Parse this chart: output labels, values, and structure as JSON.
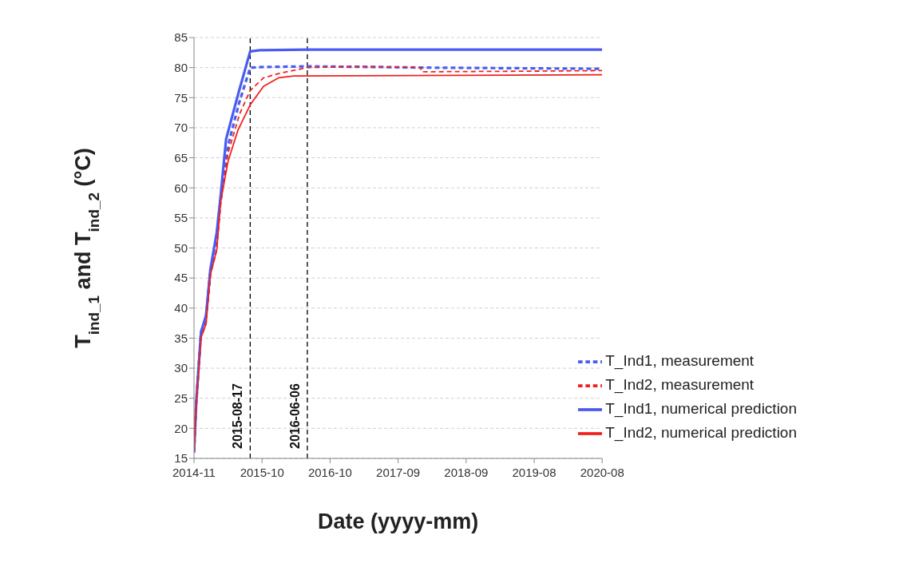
{
  "chart_data": {
    "type": "line",
    "xlabel": "Date (yyyy-mm)",
    "ylabel": "T$_{ind_1}$ and T$_{ind_2}$ (°C)",
    "xlim": [
      "2014-11-01",
      "2020-08-01"
    ],
    "xticks": [
      {
        "value": "2014-11-01",
        "label": "2014-11"
      },
      {
        "value": "2015-10-17",
        "label": "2015-10"
      },
      {
        "value": "2016-10-01",
        "label": "2016-10"
      },
      {
        "value": "2017-09-16",
        "label": "2017-09"
      },
      {
        "value": "2018-09-01",
        "label": "2018-09"
      },
      {
        "value": "2019-08-17",
        "label": "2019-08"
      },
      {
        "value": "2020-08-01",
        "label": "2020-08"
      }
    ],
    "ylim": [
      15,
      85
    ],
    "yticks": [
      15,
      20,
      25,
      30,
      35,
      40,
      45,
      50,
      55,
      60,
      65,
      70,
      75,
      80,
      85
    ],
    "grid": "y",
    "legend": "bottom right",
    "marker": "none",
    "ref_lines": [
      {
        "axis": "x",
        "value": "2015-08-17",
        "label": "2015-08-17",
        "color": "#000000",
        "line_style": "dashed"
      },
      {
        "axis": "x",
        "value": "2016-06-06",
        "label": "2016-06-06",
        "color": "#000000",
        "line_style": "dashed"
      }
    ],
    "series": [
      {
        "name": "T_Ind1, measurement",
        "color": "#4a5cf0",
        "line_style": "dashed",
        "x": [
          "2014-11-01",
          "2014-11-13",
          "2014-12-07",
          "2015-01-02",
          "2015-01-24",
          "2015-02-26",
          "2015-03-18",
          "2015-04-25",
          "2015-06-20",
          "2015-08-17",
          "2015-10-25",
          "2016-06-03",
          "2017-06-01",
          "2018-01-10",
          "2020-08-01"
        ],
        "values": [
          16,
          24.5,
          36,
          38.5,
          46,
          52,
          58,
          67,
          74,
          80,
          80.1,
          80.2,
          80.1,
          80,
          79.8
        ]
      },
      {
        "name": "T_Ind2, measurement",
        "color": "#f02020",
        "line_style": "dashed",
        "x": [
          "2014-11-01",
          "2014-11-13",
          "2014-12-07",
          "2015-01-02",
          "2015-01-24",
          "2015-02-26",
          "2015-03-18",
          "2015-04-25",
          "2015-06-25",
          "2015-08-17",
          "2015-10-25",
          "2016-01-10",
          "2016-06-03",
          "2017-03-01",
          "2018-01-10",
          "2018-01-15",
          "2019-06-01",
          "2020-08-01"
        ],
        "values": [
          16,
          24.2,
          35.1,
          37.4,
          45.5,
          49.7,
          57.3,
          65.8,
          72.4,
          76.2,
          78.3,
          79,
          80,
          80.2,
          80,
          79.3,
          79.4,
          79.5
        ]
      },
      {
        "name": "T_Ind1, numerical prediction",
        "color": "#4a5cf0",
        "line_style": "solid",
        "x": [
          "2014-11-01",
          "2014-11-13",
          "2014-12-07",
          "2015-01-02",
          "2015-01-24",
          "2015-02-26",
          "2015-03-18",
          "2015-04-15",
          "2015-06-17",
          "2015-08-17",
          "2015-10-06",
          "2016-06-06",
          "2020-08-01"
        ],
        "values": [
          16,
          24.6,
          36,
          38.8,
          46.4,
          52.6,
          58.7,
          68.1,
          75.7,
          82.7,
          82.9,
          83,
          83
        ]
      },
      {
        "name": "T_Ind2, numerical prediction",
        "color": "#f02020",
        "line_style": "solid",
        "x": [
          "2014-11-01",
          "2014-11-13",
          "2014-12-07",
          "2015-01-02",
          "2015-01-24",
          "2015-02-26",
          "2015-03-18",
          "2015-04-25",
          "2015-06-15",
          "2015-08-17",
          "2015-10-25",
          "2016-01-10",
          "2016-03-27",
          "2020-08-01"
        ],
        "values": [
          16,
          24.2,
          35.1,
          37.4,
          45.5,
          49.7,
          57.7,
          64.4,
          69.6,
          73.8,
          76.9,
          78.3,
          78.6,
          78.8
        ]
      }
    ]
  }
}
